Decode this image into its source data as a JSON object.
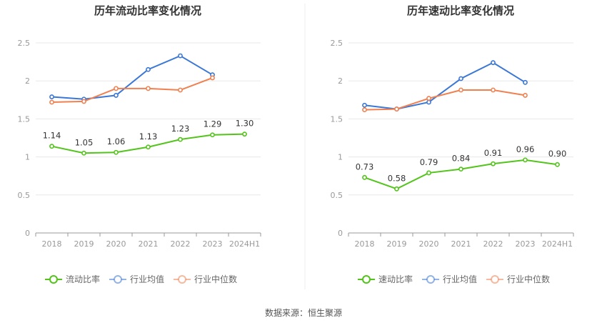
{
  "source": "数据来源：恒生聚源",
  "colors": {
    "main": "#52c41a",
    "avg": "#3a77d6",
    "median": "#f08050",
    "grid": "#e8e8e8",
    "axis": "#999999"
  },
  "chart_data": [
    {
      "type": "line",
      "title": "历年流动比率变化情况",
      "categories": [
        "2018",
        "2019",
        "2020",
        "2021",
        "2022",
        "2023",
        "2024H1"
      ],
      "ylim": [
        0,
        2.5
      ],
      "yticks": [
        "0",
        "0.5",
        "1",
        "1.5",
        "2",
        "2.5"
      ],
      "grid": true,
      "legend": "bottom",
      "series": [
        {
          "name": "流动比率",
          "values": [
            1.14,
            1.05,
            1.06,
            1.13,
            1.23,
            1.29,
            1.3
          ],
          "labels": [
            "1.14",
            "1.05",
            "1.06",
            "1.13",
            "1.23",
            "1.29",
            "1.30"
          ]
        },
        {
          "name": "行业均值",
          "values": [
            1.79,
            1.76,
            1.81,
            2.15,
            2.33,
            2.08,
            null
          ]
        },
        {
          "name": "行业中位数",
          "values": [
            1.72,
            1.73,
            1.9,
            1.9,
            1.88,
            2.04,
            null
          ]
        }
      ]
    },
    {
      "type": "line",
      "title": "历年速动比率变化情况",
      "categories": [
        "2018",
        "2019",
        "2020",
        "2021",
        "2022",
        "2023",
        "2024H1"
      ],
      "ylim": [
        0,
        2.5
      ],
      "yticks": [
        "0",
        "0.5",
        "1",
        "1.5",
        "2",
        "2.5"
      ],
      "grid": true,
      "legend": "bottom",
      "series": [
        {
          "name": "速动比率",
          "values": [
            0.73,
            0.58,
            0.79,
            0.84,
            0.91,
            0.96,
            0.9
          ],
          "labels": [
            "0.73",
            "0.58",
            "0.79",
            "0.84",
            "0.91",
            "0.96",
            "0.90"
          ]
        },
        {
          "name": "行业均值",
          "values": [
            1.68,
            1.63,
            1.72,
            2.03,
            2.24,
            1.98,
            null
          ]
        },
        {
          "name": "行业中位数",
          "values": [
            1.62,
            1.63,
            1.77,
            1.88,
            1.88,
            1.81,
            null
          ]
        }
      ]
    }
  ]
}
